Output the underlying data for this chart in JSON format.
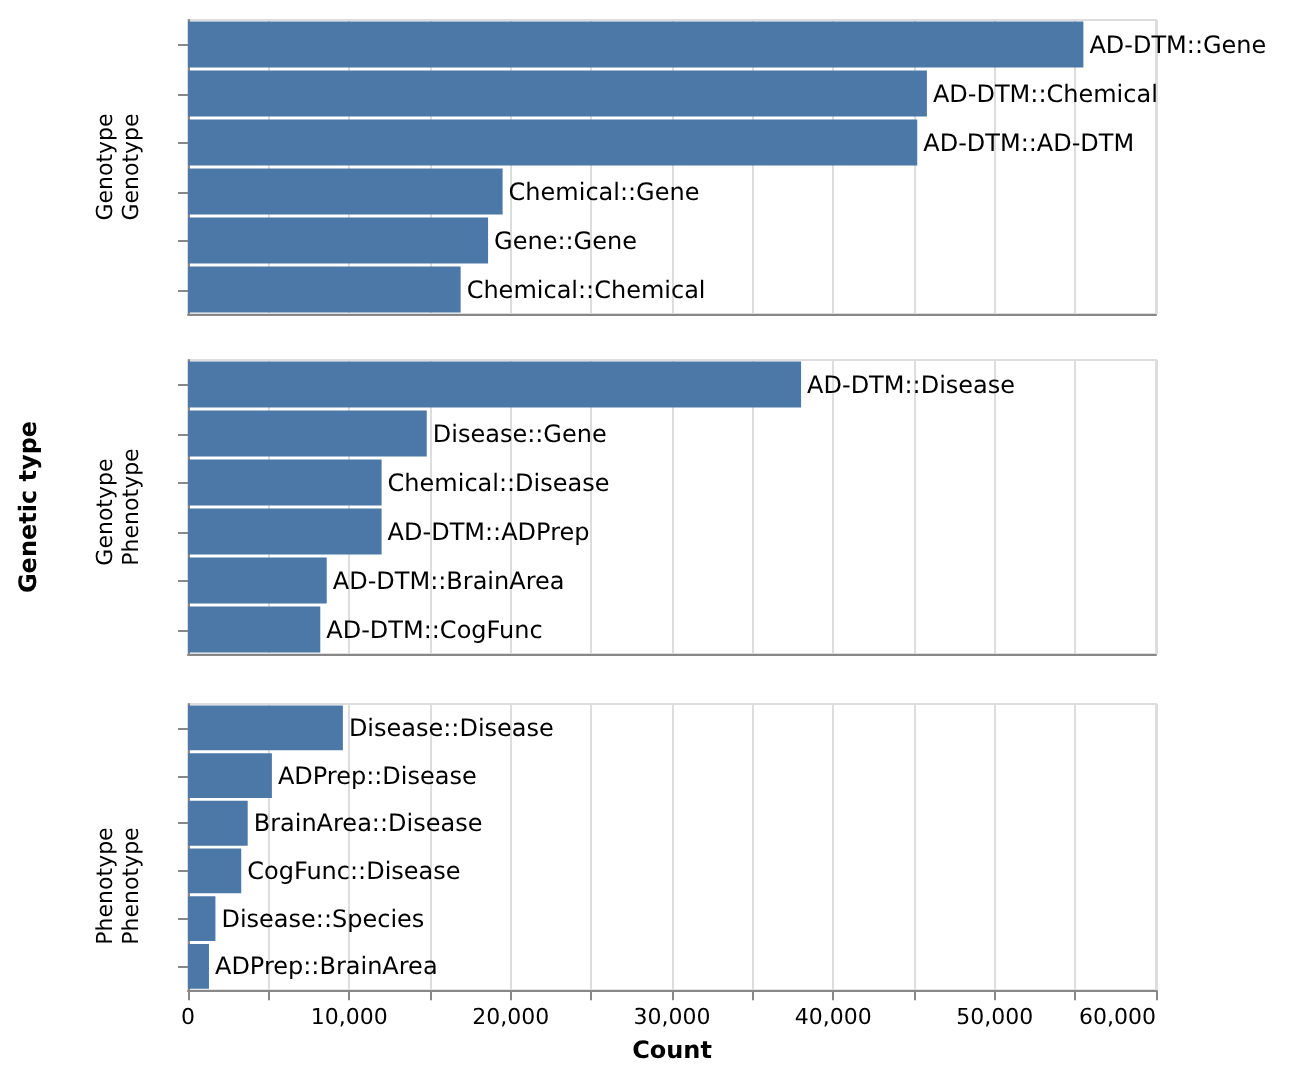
{
  "chart_data": [
    {
      "type": "bar",
      "orientation": "horizontal",
      "ylabel": "Genotype\nGenotype",
      "categories": [
        "AD-DTM::Gene",
        "AD-DTM::Chemical",
        "AD-DTM::AD-DTM",
        "Chemical::Gene",
        "Gene::Gene",
        "Chemical::Chemical"
      ],
      "values": [
        55500,
        45800,
        45200,
        19500,
        18600,
        16900
      ],
      "color": "#4c78a8",
      "xlim": [
        0,
        60000
      ],
      "xticks": [
        0,
        5000,
        10000,
        15000,
        20000,
        25000,
        30000,
        35000,
        40000,
        45000,
        50000,
        55000,
        60000
      ],
      "grid": "x",
      "tick_labels": false
    },
    {
      "type": "bar",
      "orientation": "horizontal",
      "ylabel": "Genotype\nPhenotype",
      "annotations": [
        "Genetic type"
      ],
      "categories": [
        "AD-DTM::Disease",
        "Disease::Gene",
        "Chemical::Disease",
        "AD-DTM::ADPrep",
        "AD-DTM::BrainArea",
        "AD-DTM::CogFunc"
      ],
      "values": [
        38000,
        14800,
        12000,
        12000,
        8600,
        8200
      ],
      "color": "#4c78a8",
      "xlim": [
        0,
        60000
      ],
      "xticks": [
        0,
        5000,
        10000,
        15000,
        20000,
        25000,
        30000,
        35000,
        40000,
        45000,
        50000,
        55000,
        60000
      ],
      "grid": "x",
      "tick_labels": false
    },
    {
      "type": "bar",
      "orientation": "horizontal",
      "ylabel": "Phenotype\nPhenotype",
      "xlabel": "Count",
      "categories": [
        "Disease::Disease",
        "ADPrep::Disease",
        "BrainArea::Disease",
        "CogFunc::Disease",
        "Disease::Species",
        "ADPrep::BrainArea"
      ],
      "values": [
        9600,
        5200,
        3700,
        3300,
        1700,
        1300
      ],
      "color": "#4c78a8",
      "xlim": [
        0,
        60000
      ],
      "xticks": [
        0,
        {
          "value": 5000,
          "label": null
        },
        {
          "value": 10000,
          "label": "10,000"
        },
        {
          "value": 15000,
          "label": null
        },
        {
          "value": 20000,
          "label": "20,000"
        },
        {
          "value": 25000,
          "label": null
        },
        {
          "value": 30000,
          "label": "30,000"
        },
        {
          "value": 35000,
          "label": null
        },
        {
          "value": 40000,
          "label": "40,000"
        },
        {
          "value": 45000,
          "label": null
        },
        {
          "value": 50000,
          "label": "50,000"
        },
        {
          "value": 55000,
          "label": null
        },
        {
          "value": 60000,
          "label": "60,000"
        }
      ],
      "grid": "x",
      "tick_labels": "x"
    }
  ]
}
